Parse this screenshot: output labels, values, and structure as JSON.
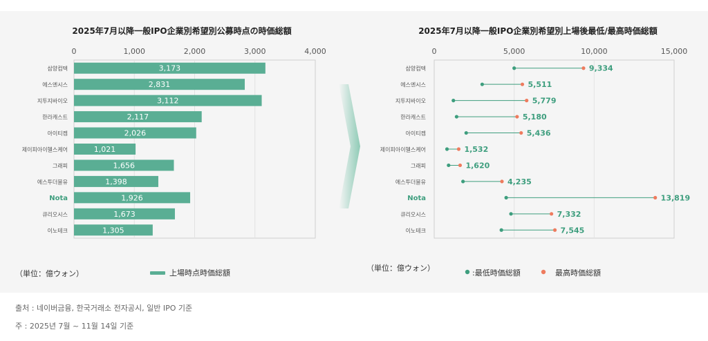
{
  "charts": {
    "left": {
      "title": "2025年7月以降一般IPO企業別希望別公募時点の時価総額",
      "unit_label": "（単位：億ウォン）",
      "legend": [
        {
          "label": "上場時点時価総額",
          "color": "#5aae94"
        }
      ]
    },
    "right": {
      "title": "2025年7月以降一般IPO企業別希望別上場後最低/最高時価総額",
      "unit_label": "（単位：億ウォン）",
      "legend": [
        {
          "label": ":最低時価総額",
          "color": "#3e9e7e"
        },
        {
          "label": "最高時価総額",
          "color": "#ee7b5e"
        }
      ]
    }
  },
  "chart_data": [
    {
      "type": "bar",
      "orientation": "horizontal",
      "title": "2025年7月以降一般IPO企業別希望別公募時点の時価総額",
      "categories": [
        "삼양컴텍",
        "에스엔시스",
        "지투지바이오",
        "한라캐스트",
        "아이티켐",
        "제이피아이헬스케어",
        "그래피",
        "에스투더블유",
        "Nota",
        "큐리오시스",
        "이노테크"
      ],
      "highlight_category": "Nota",
      "values": [
        3173,
        2831,
        3112,
        2117,
        2026,
        1021,
        1656,
        1398,
        1926,
        1673,
        1305
      ],
      "value_labels": [
        "3,173",
        "2,831",
        "3,112",
        "2,117",
        "2,026",
        "1,021",
        "1,656",
        "1,398",
        "1,926",
        "1,673",
        "1,305"
      ],
      "xlim": [
        0,
        4000
      ],
      "xticks": [
        0,
        1000,
        2000,
        3000,
        4000
      ],
      "xtick_labels": [
        "0",
        "1,000",
        "2,000",
        "3,000",
        "4,000"
      ],
      "axis_position": "top",
      "series": [
        {
          "name": "上場時点時価総額",
          "values": [
            3173,
            2831,
            3112,
            2117,
            2026,
            1021,
            1656,
            1398,
            1926,
            1673,
            1305
          ]
        }
      ]
    },
    {
      "type": "dumbbell",
      "title": "2025年7月以降一般IPO企業別希望別上場後最低/最高時価総額",
      "categories": [
        "삼양컴텍",
        "에스엔시스",
        "지투지바이오",
        "한라캐스트",
        "아이티켐",
        "제이피아이헬스케어",
        "그래피",
        "에스투더블유",
        "Nota",
        "큐리오시스",
        "이노테크"
      ],
      "highlight_category": "Nota",
      "series": [
        {
          "name": ":最低時価総額",
          "values": [
            5000,
            3000,
            1200,
            1400,
            2000,
            800,
            900,
            1800,
            4500,
            4800,
            4200
          ]
        },
        {
          "name": "最高時価総額",
          "values": [
            9334,
            5511,
            5779,
            5180,
            5436,
            1532,
            1620,
            4235,
            13819,
            7332,
            7545
          ]
        }
      ],
      "value_labels": [
        "9,334",
        "5,511",
        "5,779",
        "5,180",
        "5,436",
        "1,532",
        "1,620",
        "4,235",
        "13,819",
        "7,332",
        "7,545"
      ],
      "xlim": [
        0,
        15000
      ],
      "xticks": [
        0,
        5000,
        10000,
        15000
      ],
      "xtick_labels": [
        "0",
        "5,000",
        "10,000",
        "15,000"
      ],
      "axis_position": "top"
    }
  ],
  "footer": {
    "source": "출처 : 네이버금융, 한국거래소 전자공시, 일반 IPO 기준",
    "note": "주 : 2025년 7월 ~ 11월 14일 기준"
  },
  "colors": {
    "bar": "#5aae94",
    "min_dot": "#3e9e7e",
    "max_dot": "#ee7b5e",
    "connector": "#3e9e7e",
    "value_text": "#3e9e7e",
    "arrow": "#8fcbb6"
  }
}
